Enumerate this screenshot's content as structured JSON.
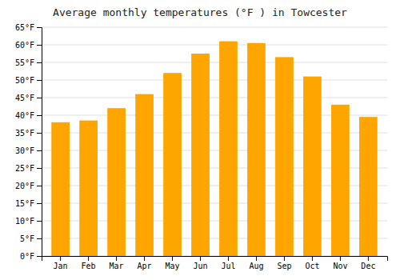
{
  "chart_data": {
    "type": "bar",
    "title": "Average monthly temperatures (°F ) in Towcester",
    "categories": [
      "Jan",
      "Feb",
      "Mar",
      "Apr",
      "May",
      "Jun",
      "Jul",
      "Aug",
      "Sep",
      "Oct",
      "Nov",
      "Dec"
    ],
    "values": [
      38,
      38.5,
      42,
      46,
      52,
      57.5,
      61,
      60.5,
      56.5,
      51,
      43,
      39.5
    ],
    "color": "#FFA500",
    "ylim": [
      0,
      65
    ],
    "yticks": [
      {
        "value": 0,
        "label": "0°F"
      },
      {
        "value": 5,
        "label": "5°F"
      },
      {
        "value": 10,
        "label": "10°F"
      },
      {
        "value": 15,
        "label": "15°F"
      },
      {
        "value": 20,
        "label": "20°F"
      },
      {
        "value": 25,
        "label": "25°F"
      },
      {
        "value": 30,
        "label": "30°F"
      },
      {
        "value": 35,
        "label": "35°F"
      },
      {
        "value": 40,
        "label": "40°F"
      },
      {
        "value": 45,
        "label": "45°F"
      },
      {
        "value": 50,
        "label": "50°F"
      },
      {
        "value": 55,
        "label": "55°F"
      },
      {
        "value": 60,
        "label": "60°F"
      },
      {
        "value": 65,
        "label": "65°F"
      }
    ],
    "grid": true
  }
}
